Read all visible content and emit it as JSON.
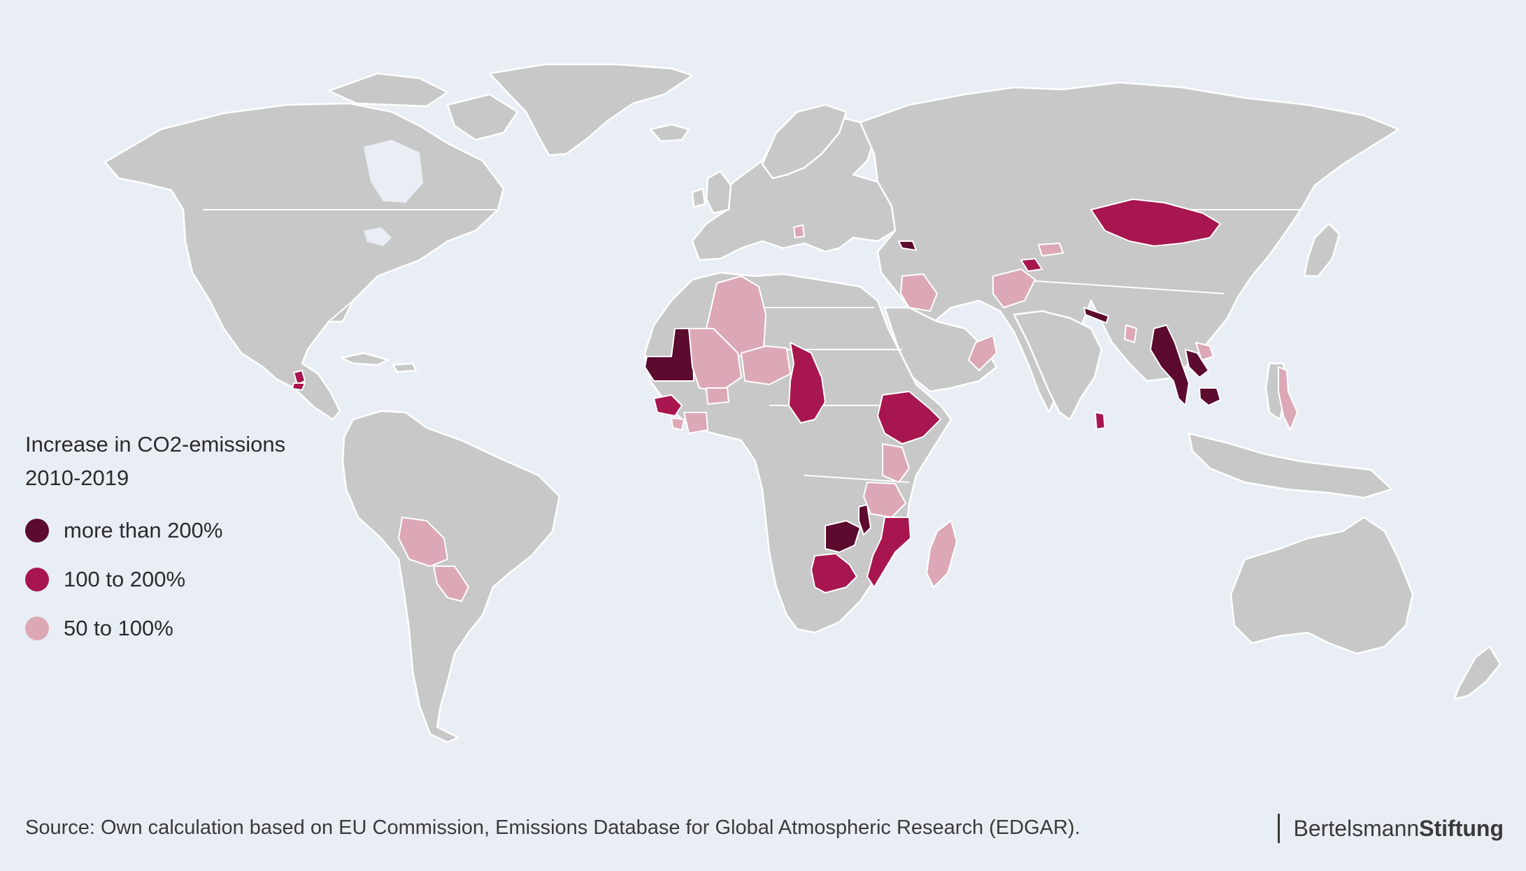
{
  "colors": {
    "background": "#e9eef5",
    "land": "#c8c8c8",
    "border": "#ffffff",
    "more_than_200": "#5c0a2e",
    "100_to_200": "#a8164f",
    "50_to_100": "#dca8b6"
  },
  "legend": {
    "title_line1": "Increase in CO2-emissions",
    "title_line2": "2010-2019",
    "items": [
      {
        "label": "more than 200%",
        "color": "#5c0a2e"
      },
      {
        "label": "100 to 200%",
        "color": "#a8164f"
      },
      {
        "label": "50 to 100%",
        "color": "#dca8b6"
      }
    ]
  },
  "source": "Source: Own calculation based on EU Commission, Emissions Database for Global Atmospheric Research (EDGAR).",
  "logo": {
    "part1": "Bertelsmann",
    "part2": "Stiftung"
  }
}
